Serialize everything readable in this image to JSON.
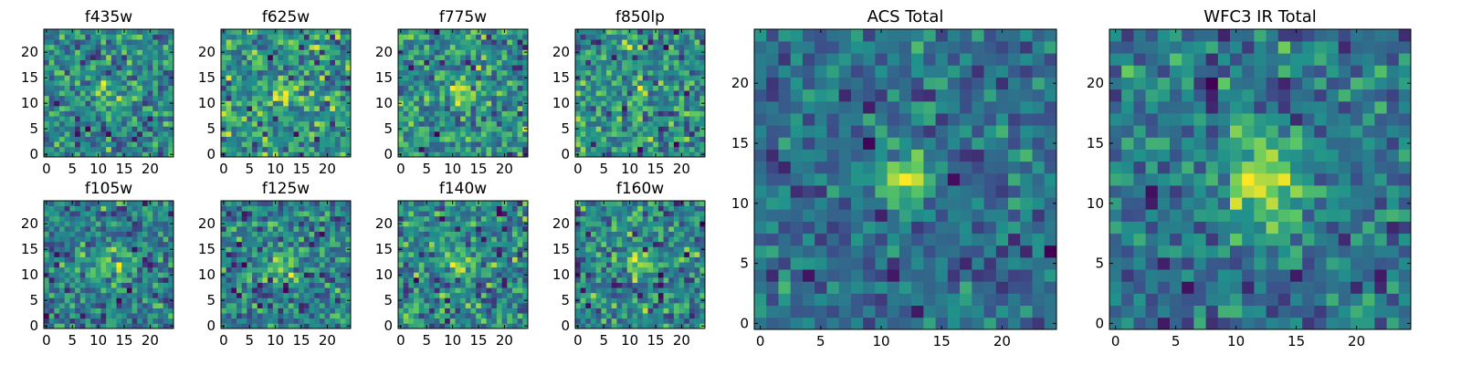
{
  "figure": {
    "colormap": "viridis",
    "colormap_stops": [
      "#440154",
      "#3b528b",
      "#21918c",
      "#5ec962",
      "#fde725"
    ],
    "background": "#ffffff"
  },
  "chart_data": [
    {
      "type": "heatmap",
      "title": "f435w",
      "xlim": [
        -0.5,
        24.5
      ],
      "ylim": [
        -0.5,
        24.5
      ],
      "xticks": [
        0,
        5,
        10,
        15,
        20
      ],
      "yticks": [
        0,
        5,
        10,
        15,
        20
      ],
      "grid": false,
      "shape": [
        25,
        25
      ],
      "peak": [
        12,
        12
      ],
      "peak_width": 1.6,
      "peak_amp": 1.4,
      "noise": 1.0,
      "seed": 11
    },
    {
      "type": "heatmap",
      "title": "f625w",
      "xlim": [
        -0.5,
        24.5
      ],
      "ylim": [
        -0.5,
        24.5
      ],
      "xticks": [
        0,
        5,
        10,
        15,
        20
      ],
      "yticks": [
        0,
        5,
        10,
        15,
        20
      ],
      "grid": false,
      "shape": [
        25,
        25
      ],
      "peak": [
        12,
        12
      ],
      "peak_width": 1.5,
      "peak_amp": 1.9,
      "noise": 1.0,
      "seed": 23
    },
    {
      "type": "heatmap",
      "title": "f775w",
      "xlim": [
        -0.5,
        24.5
      ],
      "ylim": [
        -0.5,
        24.5
      ],
      "xticks": [
        0,
        5,
        10,
        15,
        20
      ],
      "yticks": [
        0,
        5,
        10,
        15,
        20
      ],
      "grid": false,
      "shape": [
        25,
        25
      ],
      "peak": [
        12,
        12
      ],
      "peak_width": 1.5,
      "peak_amp": 1.3,
      "noise": 1.0,
      "seed": 37
    },
    {
      "type": "heatmap",
      "title": "f850lp",
      "xlim": [
        -0.5,
        24.5
      ],
      "ylim": [
        -0.5,
        24.5
      ],
      "xticks": [
        0,
        5,
        10,
        15,
        20
      ],
      "yticks": [
        0,
        5,
        10,
        15,
        20
      ],
      "grid": false,
      "shape": [
        25,
        25
      ],
      "peak": [
        12,
        12
      ],
      "peak_width": 1.5,
      "peak_amp": 0.8,
      "noise": 1.0,
      "seed": 41
    },
    {
      "type": "heatmap",
      "title": "f105w",
      "xlim": [
        -0.5,
        24.5
      ],
      "ylim": [
        -0.5,
        24.5
      ],
      "xticks": [
        0,
        5,
        10,
        15,
        20
      ],
      "yticks": [
        0,
        5,
        10,
        15,
        20
      ],
      "grid": false,
      "shape": [
        25,
        25
      ],
      "peak": [
        12,
        12
      ],
      "peak_width": 2.2,
      "peak_amp": 1.5,
      "noise": 1.0,
      "seed": 53
    },
    {
      "type": "heatmap",
      "title": "f125w",
      "xlim": [
        -0.5,
        24.5
      ],
      "ylim": [
        -0.5,
        24.5
      ],
      "xticks": [
        0,
        5,
        10,
        15,
        20
      ],
      "yticks": [
        0,
        5,
        10,
        15,
        20
      ],
      "grid": false,
      "shape": [
        25,
        25
      ],
      "peak": [
        12,
        12
      ],
      "peak_width": 2.2,
      "peak_amp": 1.3,
      "noise": 1.0,
      "seed": 67
    },
    {
      "type": "heatmap",
      "title": "f140w",
      "xlim": [
        -0.5,
        24.5
      ],
      "ylim": [
        -0.5,
        24.5
      ],
      "xticks": [
        0,
        5,
        10,
        15,
        20
      ],
      "yticks": [
        0,
        5,
        10,
        15,
        20
      ],
      "grid": false,
      "shape": [
        25,
        25
      ],
      "peak": [
        12,
        12
      ],
      "peak_width": 2.2,
      "peak_amp": 1.3,
      "noise": 1.0,
      "seed": 71
    },
    {
      "type": "heatmap",
      "title": "f160w",
      "xlim": [
        -0.5,
        24.5
      ],
      "ylim": [
        -0.5,
        24.5
      ],
      "xticks": [
        0,
        5,
        10,
        15,
        20
      ],
      "yticks": [
        0,
        5,
        10,
        15,
        20
      ],
      "grid": false,
      "shape": [
        25,
        25
      ],
      "peak": [
        12,
        12
      ],
      "peak_width": 2.2,
      "peak_amp": 1.2,
      "noise": 1.0,
      "seed": 83
    },
    {
      "type": "heatmap",
      "title": "ACS Total",
      "xlim": [
        -0.5,
        24.5
      ],
      "ylim": [
        -0.5,
        24.5
      ],
      "xticks": [
        0,
        5,
        10,
        15,
        20
      ],
      "yticks": [
        0,
        5,
        10,
        15,
        20
      ],
      "grid": false,
      "shape": [
        25,
        25
      ],
      "peak": [
        12,
        12
      ],
      "peak_width": 1.8,
      "peak_amp": 2.4,
      "noise": 0.85,
      "seed": 97
    },
    {
      "type": "heatmap",
      "title": "WFC3 IR Total",
      "xlim": [
        -0.5,
        24.5
      ],
      "ylim": [
        -0.5,
        24.5
      ],
      "xticks": [
        0,
        5,
        10,
        15,
        20
      ],
      "yticks": [
        0,
        5,
        10,
        15,
        20
      ],
      "grid": false,
      "shape": [
        25,
        25
      ],
      "peak": [
        12,
        12
      ],
      "peak_width": 2.6,
      "peak_amp": 2.0,
      "noise": 0.85,
      "seed": 101
    }
  ]
}
